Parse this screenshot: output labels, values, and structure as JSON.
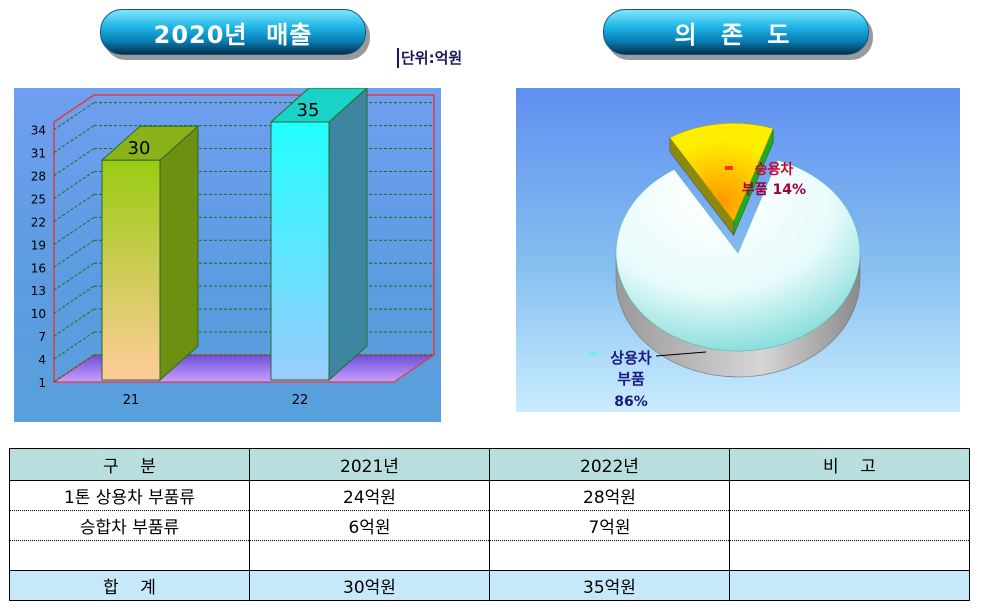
{
  "header": {
    "sales_title": "2020년  매출",
    "dependency_title": "의 존 도",
    "unit_label": "단위:억원"
  },
  "chart_data": [
    {
      "type": "bar",
      "categories": [
        "21",
        "22"
      ],
      "values": [
        30,
        35
      ],
      "data_labels": [
        "30",
        "35"
      ],
      "y_ticks": [
        1,
        4,
        7,
        10,
        13,
        16,
        19,
        22,
        25,
        28,
        31,
        34
      ],
      "ylim": [
        1,
        35
      ],
      "title": "",
      "xlabel": "",
      "ylabel": "",
      "bar_colors": [
        "#9acd32",
        "#22f2f2"
      ],
      "grid": true
    },
    {
      "type": "pie",
      "slices": [
        {
          "label": "상용차\n부품",
          "value": 86,
          "percent_label": "86%",
          "color": "#e6f7f7"
        },
        {
          "label": "승용차\n부품",
          "value": 14,
          "percent_label": "14%",
          "color": "#ffd800"
        }
      ],
      "title": ""
    }
  ],
  "table": {
    "headers": [
      "구    분",
      "2021년",
      "2022년",
      "비    고"
    ],
    "rows": [
      [
        "1톤 상용차 부품류",
        "24억원",
        "28억원",
        ""
      ],
      [
        "승합차 부품류",
        "6억원",
        "7억원",
        ""
      ],
      [
        "",
        "",
        "",
        ""
      ]
    ],
    "total": [
      "합    계",
      "30억원",
      "35억원",
      ""
    ]
  },
  "colors": {
    "pill": "#1fb6e6",
    "bar_panel": "#5c9be0",
    "pie_panel": "#86bff0",
    "table_header": "#b9dede",
    "total_row": "#c7e8f8"
  }
}
